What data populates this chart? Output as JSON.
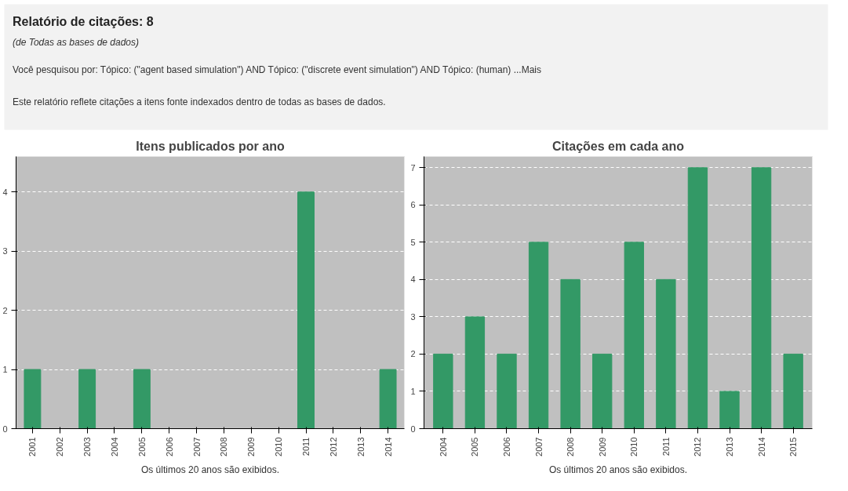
{
  "chart_data": [
    {
      "type": "other",
      "title": "Relatório de citações: 8",
      "subtitle": "(de Todas as bases de dados)",
      "annotations": [
        "Você pesquisou por:  Tópico: (\"agent based simulation\") AND Tópico: (\"discrete event simulation\") AND Tópico: (human)  ...Mais",
        "Este relatório reflete citações a itens fonte indexados dentro de todas as bases de dados."
      ]
    },
    {
      "type": "bar",
      "title": "Itens publicados por ano",
      "categories": [
        "2001",
        "2002",
        "2003",
        "2004",
        "2005",
        "2006",
        "2007",
        "2008",
        "2009",
        "2010",
        "2011",
        "2012",
        "2013",
        "2014"
      ],
      "values": [
        1,
        0,
        1,
        0,
        1,
        0,
        0,
        0,
        0,
        0,
        4,
        0,
        0,
        1
      ],
      "color": "#339966",
      "ylim": [
        0,
        4.6
      ],
      "yticks": [
        0,
        1,
        2,
        3,
        4
      ],
      "grid": "y",
      "annotations": [
        "Os últimos 20 anos são exibidos."
      ]
    },
    {
      "type": "bar",
      "title": "Citações em cada ano",
      "categories": [
        "2004",
        "2005",
        "2006",
        "2007",
        "2008",
        "2009",
        "2010",
        "2011",
        "2012",
        "2013",
        "2014",
        "2015"
      ],
      "values": [
        2,
        3,
        2,
        5,
        4,
        2,
        5,
        4,
        7,
        1,
        7,
        2
      ],
      "color": "#339966",
      "ylim": [
        0,
        7.3
      ],
      "yticks": [
        0,
        1,
        2,
        3,
        4,
        5,
        6,
        7
      ],
      "grid": "y",
      "annotations": [
        "Os últimos 20 anos são exibidos."
      ]
    }
  ]
}
